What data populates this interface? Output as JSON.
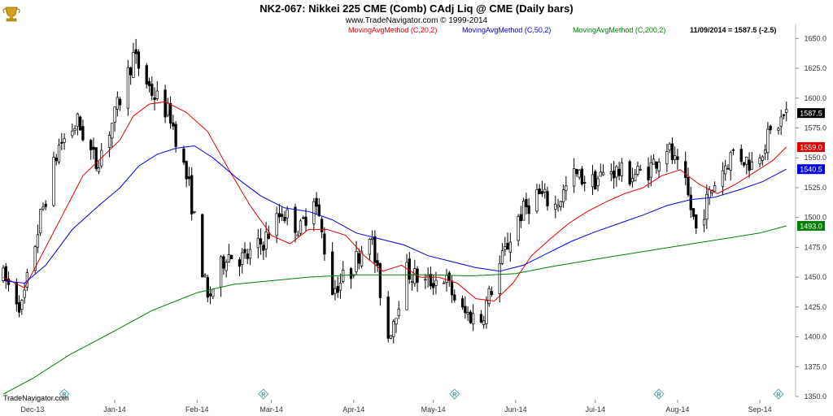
{
  "header": {
    "title": "NK2-067:  Nikkei 225 CME (Comb) CAdj Liq @ CME  (Daily bars)",
    "subtitle": "www.TradeNavigator.com © 1999-2014",
    "readout": "11/09/2014 = 1587.5 (-2.5)"
  },
  "footer": {
    "credit": "TradeNavigator.com"
  },
  "logo_icon": "trophy-icon",
  "marker_icon": "r-diamond-icon",
  "chart_data": {
    "type": "candlestick",
    "ylim": [
      1350,
      1655
    ],
    "yticks": [
      1350,
      1375,
      1400,
      1425,
      1450,
      1475,
      1500,
      1525,
      1550,
      1575,
      1600,
      1625,
      1650
    ],
    "ytick_labels": [
      "1350.0",
      "1375.0",
      "1400.0",
      "1425.0",
      "1450.0",
      "1475.0",
      "1500.0",
      "1525.0",
      "1550.0",
      "1575.0",
      "1600.0",
      "1625.0",
      "1650.0"
    ],
    "x_range": [
      "2013-11-20",
      "2014-09-12"
    ],
    "month_ticks": [
      {
        "date": "2013-12-01",
        "label": "Dec-13"
      },
      {
        "date": "2014-01-01",
        "label": "Jan-14"
      },
      {
        "date": "2014-02-01",
        "label": "Feb-14"
      },
      {
        "date": "2014-03-01",
        "label": "Mar-14"
      },
      {
        "date": "2014-04-01",
        "label": "Apr-14"
      },
      {
        "date": "2014-05-01",
        "label": "May-14"
      },
      {
        "date": "2014-06-01",
        "label": "Jun-14"
      },
      {
        "date": "2014-07-01",
        "label": "Jul-14"
      },
      {
        "date": "2014-08-01",
        "label": "Aug-14"
      },
      {
        "date": "2014-09-01",
        "label": "Sep-14"
      }
    ],
    "markers": [
      "2013-12-13",
      "2014-02-26",
      "2014-05-09",
      "2014-07-25",
      "2014-09-08"
    ],
    "price_key": [
      {
        "date": "2013-11-20",
        "price": 1450
      },
      {
        "date": "2013-11-27",
        "price": 1425
      },
      {
        "date": "2013-12-04",
        "price": 1500
      },
      {
        "date": "2013-12-11",
        "price": 1560
      },
      {
        "date": "2013-12-18",
        "price": 1580
      },
      {
        "date": "2013-12-25",
        "price": 1545
      },
      {
        "date": "2014-01-01",
        "price": 1585
      },
      {
        "date": "2014-01-08",
        "price": 1635
      },
      {
        "date": "2014-01-15",
        "price": 1605
      },
      {
        "date": "2014-01-22",
        "price": 1585
      },
      {
        "date": "2014-01-29",
        "price": 1525
      },
      {
        "date": "2014-02-05",
        "price": 1430
      },
      {
        "date": "2014-02-12",
        "price": 1470
      },
      {
        "date": "2014-02-19",
        "price": 1465
      },
      {
        "date": "2014-02-26",
        "price": 1480
      },
      {
        "date": "2014-03-05",
        "price": 1505
      },
      {
        "date": "2014-03-12",
        "price": 1490
      },
      {
        "date": "2014-03-17",
        "price": 1520
      },
      {
        "date": "2014-03-24",
        "price": 1440
      },
      {
        "date": "2014-03-31",
        "price": 1455
      },
      {
        "date": "2014-04-07",
        "price": 1490
      },
      {
        "date": "2014-04-14",
        "price": 1400
      },
      {
        "date": "2014-04-21",
        "price": 1455
      },
      {
        "date": "2014-04-28",
        "price": 1445
      },
      {
        "date": "2014-05-05",
        "price": 1450
      },
      {
        "date": "2014-05-12",
        "price": 1420
      },
      {
        "date": "2014-05-19",
        "price": 1415
      },
      {
        "date": "2014-05-26",
        "price": 1460
      },
      {
        "date": "2014-06-02",
        "price": 1500
      },
      {
        "date": "2014-06-09",
        "price": 1520
      },
      {
        "date": "2014-06-16",
        "price": 1510
      },
      {
        "date": "2014-06-23",
        "price": 1535
      },
      {
        "date": "2014-06-30",
        "price": 1530
      },
      {
        "date": "2014-07-07",
        "price": 1540
      },
      {
        "date": "2014-07-14",
        "price": 1535
      },
      {
        "date": "2014-07-21",
        "price": 1540
      },
      {
        "date": "2014-07-28",
        "price": 1560
      },
      {
        "date": "2014-08-04",
        "price": 1525
      },
      {
        "date": "2014-08-08",
        "price": 1490
      },
      {
        "date": "2014-08-15",
        "price": 1530
      },
      {
        "date": "2014-08-22",
        "price": 1555
      },
      {
        "date": "2014-08-29",
        "price": 1545
      },
      {
        "date": "2014-09-05",
        "price": 1570
      },
      {
        "date": "2014-09-11",
        "price": 1587.5
      }
    ],
    "series": [
      {
        "name": "MovingAvgMethod (C,20,2)",
        "color": "#e00000",
        "last": 1559.0,
        "points": [
          {
            "date": "2013-11-20",
            "value": 1450
          },
          {
            "date": "2013-11-28",
            "value": 1441
          },
          {
            "date": "2013-12-06",
            "value": 1475
          },
          {
            "date": "2013-12-13",
            "value": 1505
          },
          {
            "date": "2013-12-20",
            "value": 1535
          },
          {
            "date": "2013-12-27",
            "value": 1550
          },
          {
            "date": "2014-01-03",
            "value": 1565
          },
          {
            "date": "2014-01-08",
            "value": 1585
          },
          {
            "date": "2014-01-14",
            "value": 1595
          },
          {
            "date": "2014-01-20",
            "value": 1597
          },
          {
            "date": "2014-01-28",
            "value": 1588
          },
          {
            "date": "2014-02-05",
            "value": 1572
          },
          {
            "date": "2014-02-13",
            "value": 1540
          },
          {
            "date": "2014-02-21",
            "value": 1510
          },
          {
            "date": "2014-03-01",
            "value": 1485
          },
          {
            "date": "2014-03-08",
            "value": 1478
          },
          {
            "date": "2014-03-15",
            "value": 1490
          },
          {
            "date": "2014-03-22",
            "value": 1490
          },
          {
            "date": "2014-03-29",
            "value": 1485
          },
          {
            "date": "2014-04-05",
            "value": 1468
          },
          {
            "date": "2014-04-12",
            "value": 1455
          },
          {
            "date": "2014-04-19",
            "value": 1460
          },
          {
            "date": "2014-04-26",
            "value": 1450
          },
          {
            "date": "2014-05-03",
            "value": 1450
          },
          {
            "date": "2014-05-10",
            "value": 1445
          },
          {
            "date": "2014-05-17",
            "value": 1432
          },
          {
            "date": "2014-05-24",
            "value": 1430
          },
          {
            "date": "2014-05-31",
            "value": 1445
          },
          {
            "date": "2014-06-07",
            "value": 1468
          },
          {
            "date": "2014-06-14",
            "value": 1482
          },
          {
            "date": "2014-06-21",
            "value": 1495
          },
          {
            "date": "2014-06-28",
            "value": 1505
          },
          {
            "date": "2014-07-05",
            "value": 1513
          },
          {
            "date": "2014-07-12",
            "value": 1520
          },
          {
            "date": "2014-07-19",
            "value": 1525
          },
          {
            "date": "2014-07-26",
            "value": 1535
          },
          {
            "date": "2014-08-02",
            "value": 1540
          },
          {
            "date": "2014-08-09",
            "value": 1528
          },
          {
            "date": "2014-08-16",
            "value": 1520
          },
          {
            "date": "2014-08-23",
            "value": 1528
          },
          {
            "date": "2014-08-30",
            "value": 1538
          },
          {
            "date": "2014-09-06",
            "value": 1548
          },
          {
            "date": "2014-09-11",
            "value": 1559
          }
        ]
      },
      {
        "name": "MovingAvgMethod (C,50,2)",
        "color": "#0000e0",
        "last": 1540.5,
        "points": [
          {
            "date": "2013-11-20",
            "value": 1447
          },
          {
            "date": "2013-11-28",
            "value": 1445
          },
          {
            "date": "2013-12-06",
            "value": 1460
          },
          {
            "date": "2013-12-16",
            "value": 1490
          },
          {
            "date": "2013-12-26",
            "value": 1510
          },
          {
            "date": "2014-01-03",
            "value": 1525
          },
          {
            "date": "2014-01-10",
            "value": 1543
          },
          {
            "date": "2014-01-17",
            "value": 1553
          },
          {
            "date": "2014-01-24",
            "value": 1558
          },
          {
            "date": "2014-01-31",
            "value": 1560
          },
          {
            "date": "2014-02-07",
            "value": 1550
          },
          {
            "date": "2014-02-16",
            "value": 1533
          },
          {
            "date": "2014-02-25",
            "value": 1518
          },
          {
            "date": "2014-03-06",
            "value": 1508
          },
          {
            "date": "2014-03-15",
            "value": 1505
          },
          {
            "date": "2014-03-24",
            "value": 1498
          },
          {
            "date": "2014-04-02",
            "value": 1487
          },
          {
            "date": "2014-04-11",
            "value": 1482
          },
          {
            "date": "2014-04-20",
            "value": 1477
          },
          {
            "date": "2014-04-29",
            "value": 1468
          },
          {
            "date": "2014-05-08",
            "value": 1463
          },
          {
            "date": "2014-05-17",
            "value": 1458
          },
          {
            "date": "2014-05-26",
            "value": 1455
          },
          {
            "date": "2014-06-04",
            "value": 1460
          },
          {
            "date": "2014-06-13",
            "value": 1470
          },
          {
            "date": "2014-06-22",
            "value": 1480
          },
          {
            "date": "2014-07-01",
            "value": 1488
          },
          {
            "date": "2014-07-10",
            "value": 1495
          },
          {
            "date": "2014-07-19",
            "value": 1502
          },
          {
            "date": "2014-07-28",
            "value": 1510
          },
          {
            "date": "2014-08-06",
            "value": 1515
          },
          {
            "date": "2014-08-15",
            "value": 1517
          },
          {
            "date": "2014-08-24",
            "value": 1523
          },
          {
            "date": "2014-09-02",
            "value": 1530
          },
          {
            "date": "2014-09-11",
            "value": 1540.5
          }
        ]
      },
      {
        "name": "MovingAvgMethod (C,200,2)",
        "color": "#008000",
        "last": 1493.0,
        "points": [
          {
            "date": "2013-11-20",
            "value": 1352
          },
          {
            "date": "2013-12-01",
            "value": 1365
          },
          {
            "date": "2013-12-15",
            "value": 1385
          },
          {
            "date": "2014-01-01",
            "value": 1405
          },
          {
            "date": "2014-01-15",
            "value": 1422
          },
          {
            "date": "2014-02-01",
            "value": 1437
          },
          {
            "date": "2014-02-15",
            "value": 1444
          },
          {
            "date": "2014-03-01",
            "value": 1447
          },
          {
            "date": "2014-03-15",
            "value": 1450
          },
          {
            "date": "2014-04-01",
            "value": 1452
          },
          {
            "date": "2014-04-15",
            "value": 1452
          },
          {
            "date": "2014-05-01",
            "value": 1452
          },
          {
            "date": "2014-05-15",
            "value": 1451
          },
          {
            "date": "2014-06-01",
            "value": 1453
          },
          {
            "date": "2014-06-15",
            "value": 1459
          },
          {
            "date": "2014-07-01",
            "value": 1465
          },
          {
            "date": "2014-07-15",
            "value": 1470
          },
          {
            "date": "2014-08-01",
            "value": 1476
          },
          {
            "date": "2014-08-15",
            "value": 1481
          },
          {
            "date": "2014-09-01",
            "value": 1487
          },
          {
            "date": "2014-09-11",
            "value": 1493
          }
        ]
      }
    ],
    "tags": [
      {
        "label": "1587.5",
        "value": 1587.5,
        "bg": "#000000",
        "fg": "#ffffff"
      },
      {
        "label": "1559.0",
        "value": 1559.0,
        "bg": "#e00000",
        "fg": "#ffffff"
      },
      {
        "label": "1540.5",
        "value": 1540.5,
        "bg": "#0000e0",
        "fg": "#ffffff"
      },
      {
        "label": "1493.0",
        "value": 1493.0,
        "bg": "#008000",
        "fg": "#ffffff"
      }
    ]
  }
}
